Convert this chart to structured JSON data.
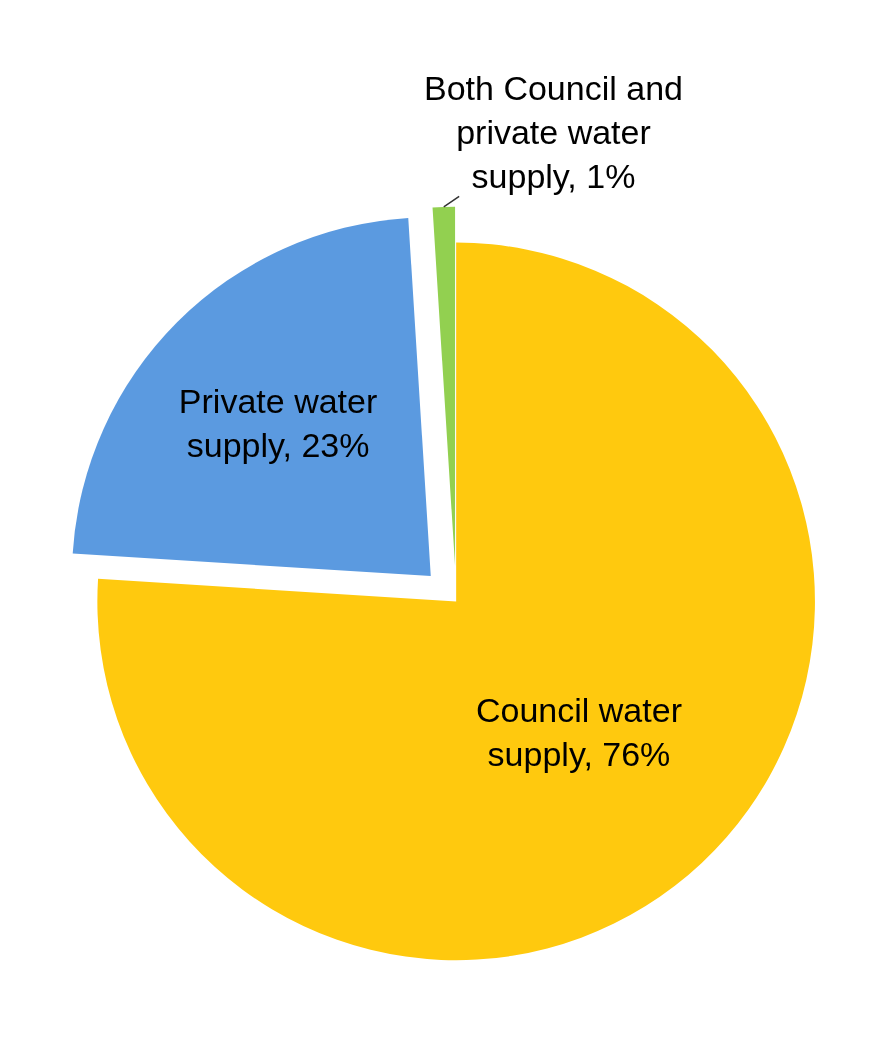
{
  "chart_data": {
    "type": "pie",
    "categories": [
      "Council water supply",
      "Private water supply",
      "Both Council and private water supply"
    ],
    "values": [
      76,
      23,
      1
    ],
    "value_labels": [
      "76%",
      "23%",
      "1%"
    ],
    "colors": [
      "#ffc90e",
      "#5b9ae0",
      "#92d050"
    ],
    "legend": false
  }
}
